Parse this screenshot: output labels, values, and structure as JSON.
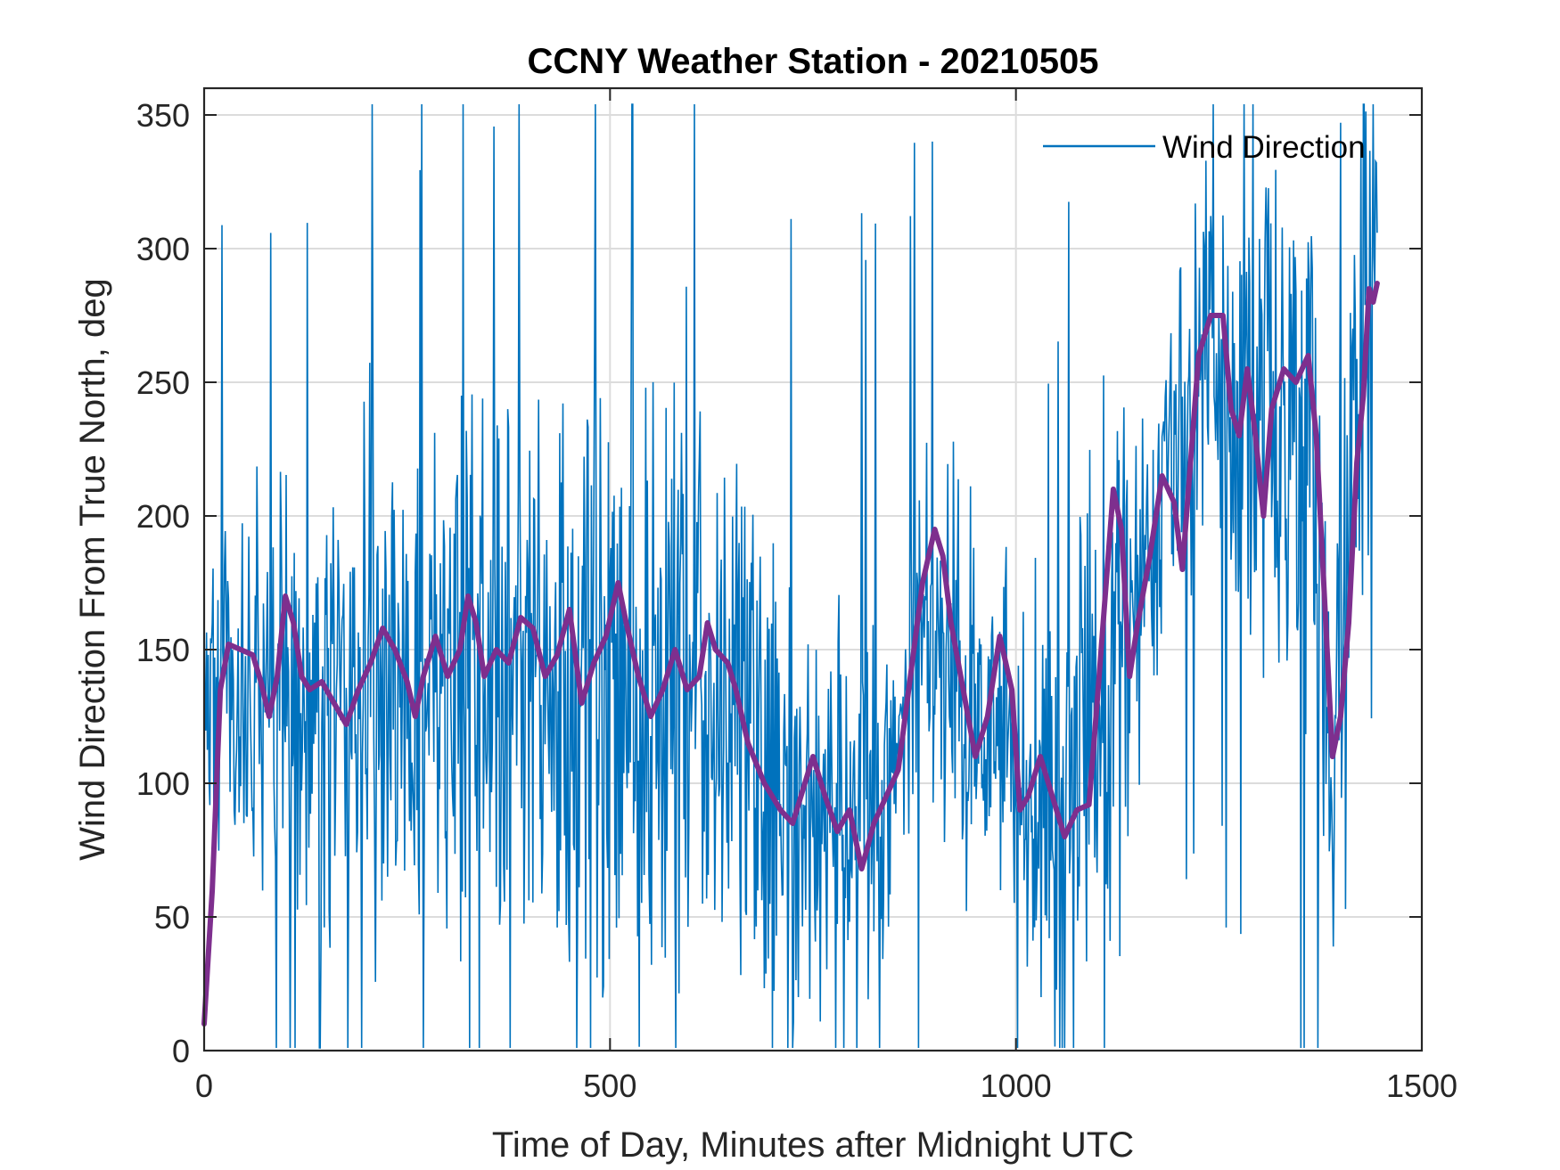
{
  "chart_data": {
    "type": "line",
    "title": "CCNY Weather Station - 20210505",
    "xlabel": "Time of Day, Minutes after Midnight UTC",
    "ylabel": "Wind Direction From True North, deg",
    "xlim": [
      0,
      1500
    ],
    "ylim": [
      0,
      360
    ],
    "xticks": [
      0,
      500,
      1000,
      1500
    ],
    "yticks": [
      0,
      50,
      100,
      150,
      200,
      250,
      300,
      350
    ],
    "grid": true,
    "legend": {
      "position": "top-right",
      "entries": [
        "Wind Direction"
      ]
    },
    "series": [
      {
        "name": "Wind Direction",
        "color": "#0072BD",
        "style": "thin-noisy",
        "envelope": [
          [
            0,
            140
          ],
          [
            30,
            140
          ],
          [
            100,
            135
          ],
          [
            150,
            130
          ],
          [
            200,
            140
          ],
          [
            260,
            130
          ],
          [
            320,
            145
          ],
          [
            380,
            140
          ],
          [
            440,
            140
          ],
          [
            500,
            150
          ],
          [
            560,
            140
          ],
          [
            620,
            135
          ],
          [
            680,
            125
          ],
          [
            740,
            100
          ],
          [
            800,
            95
          ],
          [
            850,
            115
          ],
          [
            900,
            160
          ],
          [
            950,
            120
          ],
          [
            990,
            110
          ],
          [
            1030,
            95
          ],
          [
            1090,
            110
          ],
          [
            1130,
            160
          ],
          [
            1180,
            210
          ],
          [
            1230,
            270
          ],
          [
            1290,
            245
          ],
          [
            1350,
            240
          ],
          [
            1390,
            120
          ],
          [
            1420,
            260
          ],
          [
            1445,
            295
          ]
        ],
        "spread": [
          [
            0,
            60
          ],
          [
            200,
            90
          ],
          [
            500,
            110
          ],
          [
            800,
            80
          ],
          [
            1000,
            60
          ],
          [
            1100,
            100
          ],
          [
            1200,
            60
          ],
          [
            1300,
            90
          ],
          [
            1400,
            130
          ],
          [
            1445,
            60
          ]
        ]
      },
      {
        "name": "",
        "color": "#7E2F8E",
        "style": "thick-smoothed",
        "points": [
          [
            0,
            10
          ],
          [
            10,
            60
          ],
          [
            20,
            135
          ],
          [
            30,
            152
          ],
          [
            45,
            150
          ],
          [
            60,
            148
          ],
          [
            70,
            138
          ],
          [
            80,
            125
          ],
          [
            90,
            140
          ],
          [
            100,
            170
          ],
          [
            110,
            160
          ],
          [
            120,
            140
          ],
          [
            130,
            135
          ],
          [
            145,
            138
          ],
          [
            160,
            130
          ],
          [
            175,
            122
          ],
          [
            190,
            135
          ],
          [
            205,
            145
          ],
          [
            220,
            158
          ],
          [
            235,
            150
          ],
          [
            250,
            138
          ],
          [
            260,
            125
          ],
          [
            270,
            140
          ],
          [
            285,
            155
          ],
          [
            300,
            140
          ],
          [
            315,
            150
          ],
          [
            325,
            170
          ],
          [
            335,
            160
          ],
          [
            345,
            140
          ],
          [
            360,
            150
          ],
          [
            375,
            145
          ],
          [
            390,
            162
          ],
          [
            405,
            158
          ],
          [
            420,
            140
          ],
          [
            435,
            148
          ],
          [
            450,
            165
          ],
          [
            465,
            130
          ],
          [
            480,
            145
          ],
          [
            495,
            155
          ],
          [
            510,
            175
          ],
          [
            520,
            160
          ],
          [
            535,
            140
          ],
          [
            550,
            125
          ],
          [
            565,
            135
          ],
          [
            580,
            150
          ],
          [
            595,
            135
          ],
          [
            610,
            140
          ],
          [
            620,
            160
          ],
          [
            630,
            150
          ],
          [
            645,
            145
          ],
          [
            655,
            135
          ],
          [
            670,
            115
          ],
          [
            690,
            100
          ],
          [
            710,
            90
          ],
          [
            725,
            85
          ],
          [
            740,
            100
          ],
          [
            750,
            110
          ],
          [
            765,
            95
          ],
          [
            780,
            82
          ],
          [
            795,
            90
          ],
          [
            810,
            68
          ],
          [
            825,
            85
          ],
          [
            840,
            95
          ],
          [
            855,
            105
          ],
          [
            870,
            140
          ],
          [
            885,
            175
          ],
          [
            900,
            195
          ],
          [
            910,
            185
          ],
          [
            920,
            160
          ],
          [
            935,
            135
          ],
          [
            950,
            110
          ],
          [
            965,
            125
          ],
          [
            980,
            155
          ],
          [
            995,
            135
          ],
          [
            1005,
            90
          ],
          [
            1015,
            95
          ],
          [
            1030,
            110
          ],
          [
            1045,
            95
          ],
          [
            1060,
            80
          ],
          [
            1075,
            90
          ],
          [
            1090,
            92
          ],
          [
            1100,
            130
          ],
          [
            1110,
            170
          ],
          [
            1120,
            210
          ],
          [
            1130,
            195
          ],
          [
            1140,
            140
          ],
          [
            1150,
            160
          ],
          [
            1165,
            185
          ],
          [
            1180,
            215
          ],
          [
            1195,
            205
          ],
          [
            1205,
            180
          ],
          [
            1215,
            220
          ],
          [
            1225,
            260
          ],
          [
            1240,
            275
          ],
          [
            1255,
            275
          ],
          [
            1265,
            240
          ],
          [
            1275,
            230
          ],
          [
            1285,
            255
          ],
          [
            1295,
            230
          ],
          [
            1305,
            200
          ],
          [
            1315,
            240
          ],
          [
            1330,
            255
          ],
          [
            1345,
            250
          ],
          [
            1360,
            260
          ],
          [
            1370,
            230
          ],
          [
            1380,
            170
          ],
          [
            1390,
            110
          ],
          [
            1400,
            125
          ],
          [
            1410,
            160
          ],
          [
            1420,
            220
          ],
          [
            1428,
            245
          ],
          [
            1435,
            285
          ],
          [
            1440,
            280
          ],
          [
            1445,
            287
          ]
        ]
      }
    ]
  }
}
